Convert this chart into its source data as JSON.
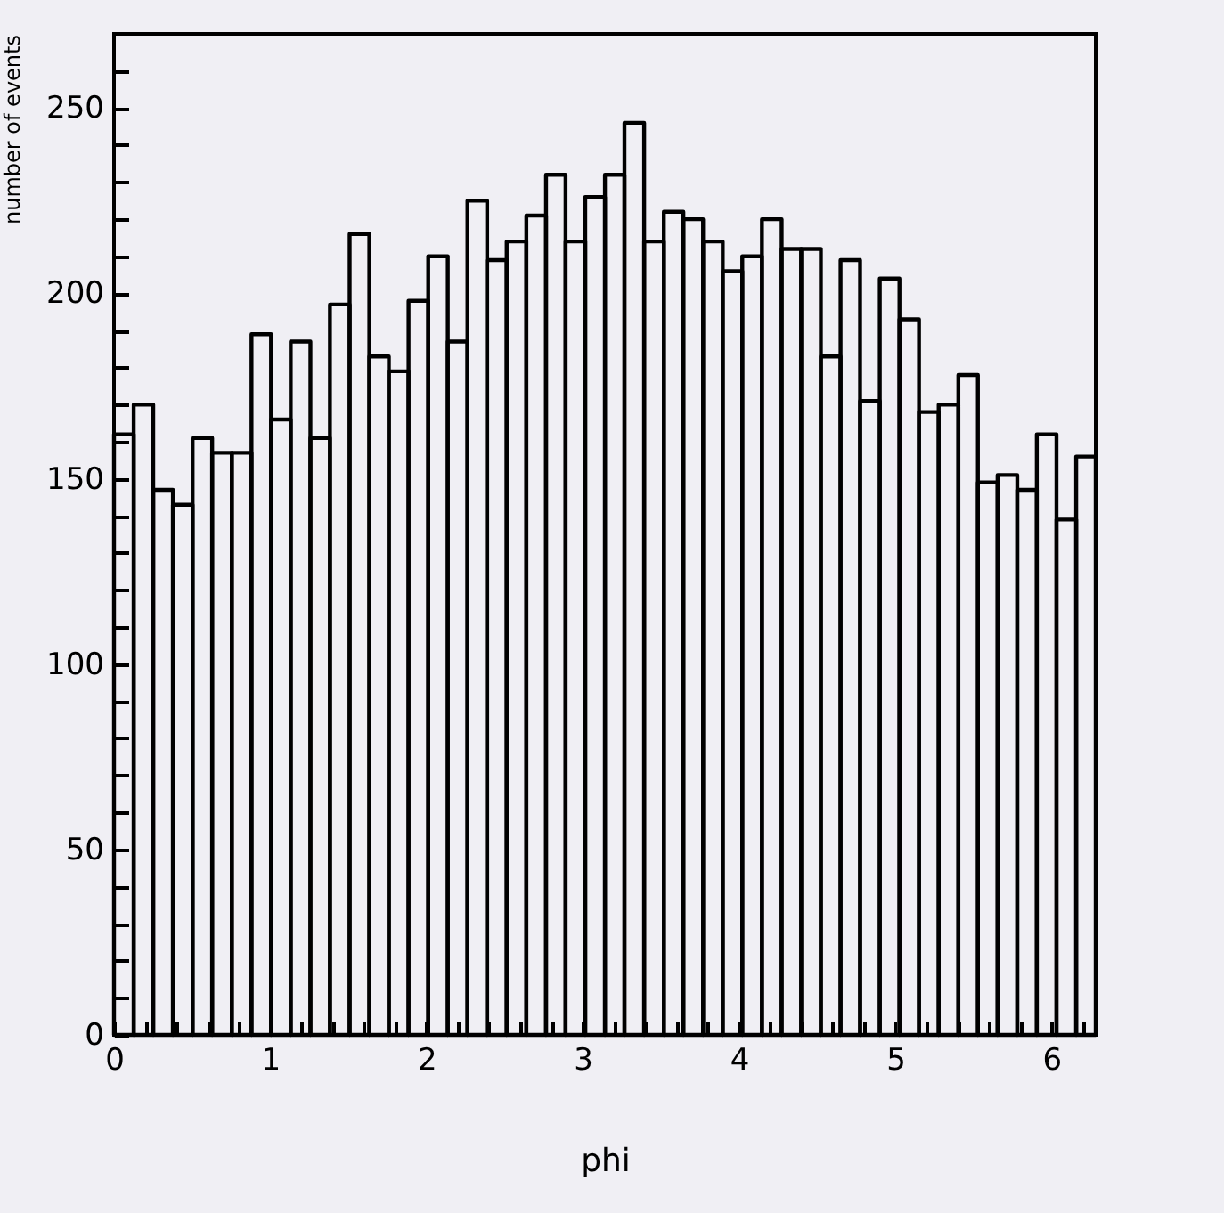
{
  "chart_data": {
    "type": "histogram",
    "xlabel": "phi",
    "ylabel": "number of events",
    "color": "#000000",
    "bins": [
      0,
      0.126,
      0.251,
      0.377,
      0.503,
      0.628,
      0.754,
      0.88,
      1.005,
      1.131,
      1.257,
      1.382,
      1.508,
      1.634,
      1.759,
      1.885,
      2.011,
      2.136,
      2.262,
      2.388,
      2.513,
      2.639,
      2.765,
      2.89,
      3.016,
      3.142,
      3.267,
      3.393,
      3.519,
      3.644,
      3.77,
      3.896,
      4.021,
      4.147,
      4.273,
      4.398,
      4.524,
      4.65,
      4.775,
      4.901,
      5.027,
      5.152,
      5.278,
      5.404,
      5.529,
      5.655,
      5.781,
      5.906,
      6.032,
      6.158,
      6.283
    ],
    "values": [
      162,
      170,
      147,
      143,
      161,
      157,
      157,
      189,
      166,
      187,
      161,
      197,
      216,
      183,
      179,
      198,
      210,
      187,
      225,
      209,
      214,
      221,
      232,
      214,
      226,
      232,
      246,
      214,
      222,
      220,
      214,
      206,
      210,
      220,
      212,
      212,
      183,
      209,
      171,
      204,
      193,
      168,
      170,
      178,
      149,
      151,
      147,
      162,
      139,
      156
    ],
    "xlim": [
      0,
      6.283
    ],
    "ylim": [
      0,
      270
    ],
    "xticks": [
      0,
      {
        "value": 0.2,
        "label": null
      },
      {
        "value": 0.4,
        "label": null
      },
      {
        "value": 0.6,
        "label": null
      },
      {
        "value": 0.8,
        "label": null
      },
      1,
      {
        "value": 1.2,
        "label": null
      },
      {
        "value": 1.4,
        "label": null
      },
      {
        "value": 1.6,
        "label": null
      },
      {
        "value": 1.8,
        "label": null
      },
      2,
      {
        "value": 2.2,
        "label": null
      },
      {
        "value": 2.4,
        "label": null
      },
      {
        "value": 2.6,
        "label": null
      },
      {
        "value": 2.8,
        "label": null
      },
      3,
      {
        "value": 3.2,
        "label": null
      },
      {
        "value": 3.4,
        "label": null
      },
      {
        "value": 3.6,
        "label": null
      },
      {
        "value": 3.8,
        "label": null
      },
      4,
      {
        "value": 4.2,
        "label": null
      },
      {
        "value": 4.4,
        "label": null
      },
      {
        "value": 4.6,
        "label": null
      },
      {
        "value": 4.8,
        "label": null
      },
      5,
      {
        "value": 5.2,
        "label": null
      },
      {
        "value": 5.4,
        "label": null
      },
      {
        "value": 5.6,
        "label": null
      },
      {
        "value": 5.8,
        "label": null
      },
      6,
      {
        "value": 6.2,
        "label": null
      }
    ],
    "yticks": [
      0,
      {
        "value": 10,
        "label": null
      },
      {
        "value": 20,
        "label": null
      },
      {
        "value": 30,
        "label": null
      },
      {
        "value": 40,
        "label": null
      },
      50,
      {
        "value": 60,
        "label": null
      },
      {
        "value": 70,
        "label": null
      },
      {
        "value": 80,
        "label": null
      },
      {
        "value": 90,
        "label": null
      },
      100,
      {
        "value": 110,
        "label": null
      },
      {
        "value": 120,
        "label": null
      },
      {
        "value": 130,
        "label": null
      },
      {
        "value": 140,
        "label": null
      },
      150,
      {
        "value": 160,
        "label": null
      },
      {
        "value": 170,
        "label": null
      },
      {
        "value": 180,
        "label": null
      },
      {
        "value": 190,
        "label": null
      },
      200,
      {
        "value": 210,
        "label": null
      },
      {
        "value": 220,
        "label": null
      },
      {
        "value": 230,
        "label": null
      },
      {
        "value": 240,
        "label": null
      },
      250,
      {
        "value": 260,
        "label": null
      }
    ]
  }
}
